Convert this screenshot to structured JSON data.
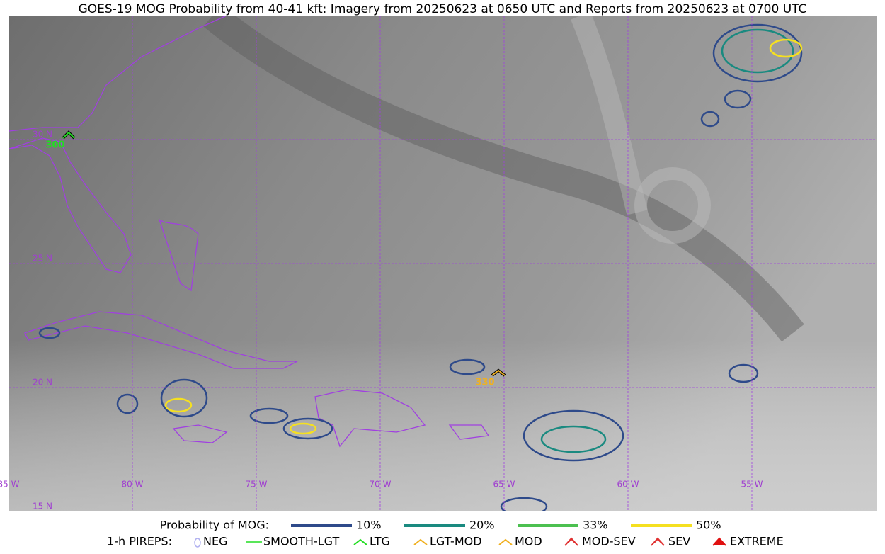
{
  "title": "GOES-19 MOG Probability from 40-41 kft: Imagery from 20250623 at 0650 UTC and Reports from 20250623 at 0700 UTC",
  "map": {
    "lat_labels": [
      "30 N",
      "25 N",
      "20 N",
      "15 N"
    ],
    "lon_labels": [
      "85 W",
      "80 W",
      "75 W",
      "70 W",
      "65 W",
      "60 W",
      "55 W"
    ]
  },
  "reports": [
    {
      "label": "300",
      "color": "#22dd22"
    },
    {
      "label": "330",
      "color": "#f0b020"
    }
  ],
  "legend": {
    "probability": {
      "label": "Probability of MOG:",
      "items": [
        {
          "label": "10%",
          "color": "#2e4a8a"
        },
        {
          "label": "20%",
          "color": "#1a8a80"
        },
        {
          "label": "33%",
          "color": "#4cc050"
        },
        {
          "label": "50%",
          "color": "#f5e020"
        }
      ]
    },
    "pireps": {
      "label": "1-h PIREPS:",
      "items": [
        {
          "label": "NEG",
          "color": "#b0b0f0"
        },
        {
          "label": "SMOOTH-LGT",
          "color": "#22dd22"
        },
        {
          "label": "LTG",
          "color": "#22dd22"
        },
        {
          "label": "LGT-MOD",
          "color": "#f0b020"
        },
        {
          "label": "MOD",
          "color": "#f0b020"
        },
        {
          "label": "MOD-SEV",
          "color": "#e03030"
        },
        {
          "label": "SEV",
          "color": "#e03030"
        },
        {
          "label": "EXTREME",
          "color": "#e01010"
        }
      ]
    }
  }
}
